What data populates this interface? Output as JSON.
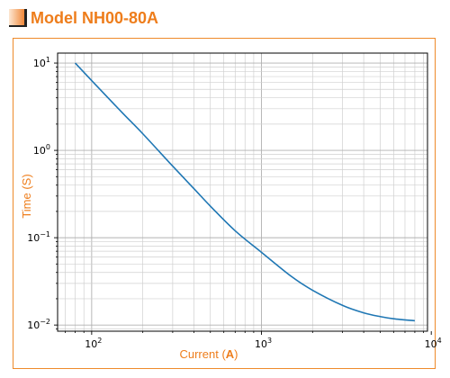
{
  "header": {
    "title": "Model NH00-80A"
  },
  "colors": {
    "accent": "#ee7d1b",
    "frame": "#ee8a2a",
    "series": "#1f77b4"
  },
  "chart_data": {
    "type": "line",
    "xlabel_prefix": "Current (",
    "xlabel_unit": "A",
    "xlabel_suffix": ")",
    "ylabel": "Time (S)",
    "xscale": "log",
    "yscale": "log",
    "xlim": [
      63,
      9500
    ],
    "ylim": [
      0.0085,
      13
    ],
    "grid": true,
    "x_ticks": [
      {
        "value": 100,
        "base": "10",
        "exp": "2"
      },
      {
        "value": 1000,
        "base": "10",
        "exp": "3"
      },
      {
        "value": 10000,
        "base": "10",
        "exp": "4"
      }
    ],
    "y_ticks": [
      {
        "value": 10,
        "base": "10",
        "exp": "1"
      },
      {
        "value": 1,
        "base": "10",
        "exp": "0"
      },
      {
        "value": 0.1,
        "base": "10",
        "exp": "−1"
      },
      {
        "value": 0.01,
        "base": "10",
        "exp": "−2"
      }
    ],
    "series": [
      {
        "x": [
          80,
          100,
          150,
          200,
          300,
          400,
          500,
          700,
          1000,
          1500,
          2000,
          3000,
          4000,
          5000,
          6000,
          8000
        ],
        "y": [
          10,
          6.3,
          2.75,
          1.55,
          0.66,
          0.365,
          0.23,
          0.12,
          0.068,
          0.036,
          0.025,
          0.0168,
          0.0138,
          0.0125,
          0.0118,
          0.0112
        ]
      }
    ]
  }
}
